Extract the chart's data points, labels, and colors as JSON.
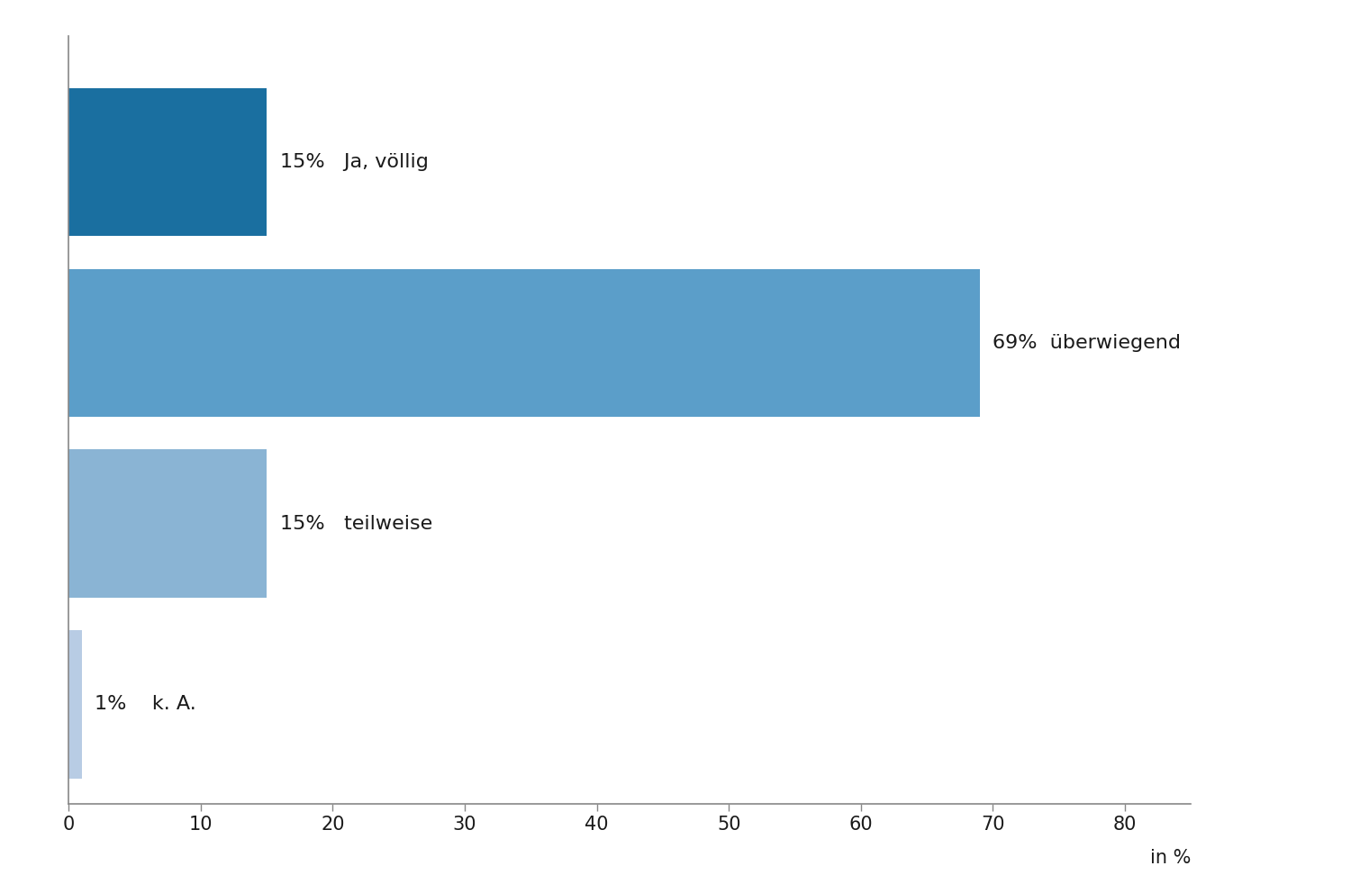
{
  "categories": [
    "k. A.",
    "teilweise",
    "überwiegend",
    "Ja, völlig"
  ],
  "values": [
    1,
    15,
    69,
    15
  ],
  "colors": [
    "#b8cce4",
    "#8ab4d4",
    "#5b9ec9",
    "#1a6fa0"
  ],
  "label_texts": [
    "1%    k. A.",
    "15%   teilweise",
    "69%  überwiegend",
    "15%   Ja, völlig"
  ],
  "label_outside": [
    false,
    false,
    true,
    false
  ],
  "xlabel": "in %",
  "xlim": [
    0,
    85
  ],
  "xticks": [
    0,
    10,
    20,
    30,
    40,
    50,
    60,
    70,
    80
  ],
  "bar_height": 0.82,
  "background_color": "#ffffff",
  "text_color": "#1a1a1a",
  "fontsize_label": 16,
  "fontsize_tick": 15,
  "fontsize_xlabel": 15,
  "spine_color": "#888888"
}
